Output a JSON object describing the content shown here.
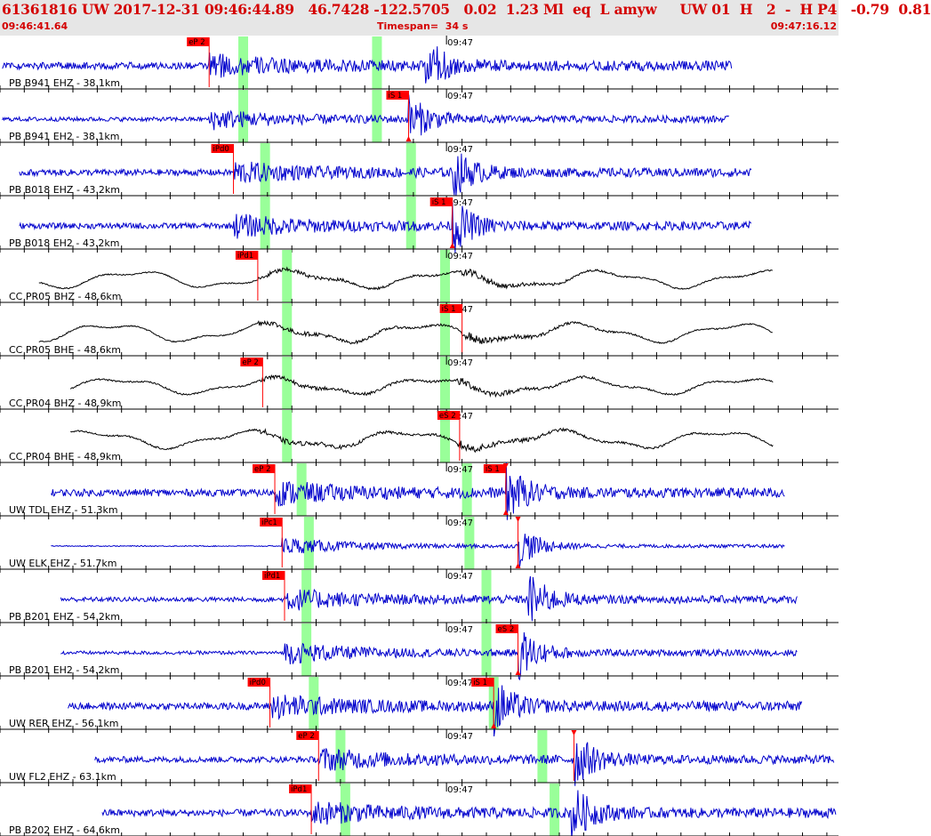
{
  "header": {
    "title": "61361816 UW 2017-12-31 09:46:44.89   46.7428 -122.5705   0.02  1.23 Ml  eq  L amyw     UW 01  H   2  -  H P4   -0.79  0.81",
    "start_time": "09:46:41.64",
    "timespan": "Timespan=  34 s",
    "end_time": "09:47:16.12"
  },
  "chart_data": {
    "type": "line",
    "time_range_s": [
      0,
      34.48
    ],
    "minute_mark_label": "09:47",
    "minute_mark_s": 18.36,
    "colors": {
      "trace_short_period": "#0000cc",
      "trace_broadband": "#000000",
      "pick_flag": "#ff0000",
      "window": "#99ff99",
      "grid": "#000000"
    },
    "traces": [
      {
        "label": "PB B941 EHZ - 38.1km",
        "color": "#0000cc",
        "style": "sp",
        "trace_start_s": 0.1,
        "trace_end_s": 30.1,
        "noise": 0.12,
        "p_s": 8.6,
        "s_s": 17.5,
        "p_pick": {
          "label": "eP 2",
          "t": 8.6,
          "side": "left",
          "marker": ""
        },
        "s_pick": null,
        "windows_s": [
          9.8,
          15.3
        ],
        "amp": 0.55
      },
      {
        "label": "PB B941 EH2 - 38.1km",
        "color": "#0000cc",
        "style": "sp",
        "trace_start_s": 0.1,
        "trace_end_s": 30.0,
        "noise": 0.08,
        "p_s": 8.6,
        "s_s": 16.8,
        "p_pick": null,
        "s_pick": {
          "label": "iS 1",
          "t": 16.8,
          "side": "left",
          "marker": "up"
        },
        "windows_s": [
          9.8,
          15.3
        ],
        "amp": 0.5
      },
      {
        "label": "PB B018 EHZ - 43.2km",
        "color": "#0000cc",
        "style": "sp",
        "trace_start_s": 0.8,
        "trace_end_s": 30.9,
        "noise": 0.12,
        "p_s": 9.6,
        "s_s": 18.6,
        "p_pick": {
          "label": "iPd0",
          "t": 9.6,
          "side": "left",
          "marker": ""
        },
        "s_pick": null,
        "windows_s": [
          10.7,
          16.7
        ],
        "amp": 0.5
      },
      {
        "label": "PB B018 EH2 - 43.2km",
        "color": "#0000cc",
        "style": "sp",
        "trace_start_s": 0.8,
        "trace_end_s": 30.9,
        "noise": 0.1,
        "p_s": 9.6,
        "s_s": 18.6,
        "p_pick": null,
        "s_pick": {
          "label": "iS 1",
          "t": 18.6,
          "side": "left",
          "marker": "up"
        },
        "windows_s": [
          10.7,
          16.7
        ],
        "amp": 0.55
      },
      {
        "label": "CC PR05 BHZ - 48.6km",
        "color": "#000000",
        "style": "bb",
        "trace_start_s": 1.6,
        "trace_end_s": 31.8,
        "noise": 0.03,
        "p_s": 10.6,
        "s_s": 19.0,
        "p_pick": {
          "label": "iPd1",
          "t": 10.6,
          "side": "left",
          "marker": ""
        },
        "s_pick": null,
        "windows_s": [
          11.6,
          18.1
        ],
        "amp": 0.7
      },
      {
        "label": "CC PR05 BHE - 48.6km",
        "color": "#000000",
        "style": "bb",
        "trace_start_s": 1.6,
        "trace_end_s": 31.8,
        "noise": 0.03,
        "p_s": 10.6,
        "s_s": 19.0,
        "p_pick": null,
        "s_pick": {
          "label": "iS 1",
          "t": 19.0,
          "side": "left",
          "marker": ""
        },
        "windows_s": [
          11.6,
          18.1
        ],
        "amp": 0.75
      },
      {
        "label": "CC PR04 BHZ - 48.9km",
        "color": "#000000",
        "style": "bb",
        "trace_start_s": 2.9,
        "trace_end_s": 31.8,
        "noise": 0.04,
        "p_s": 10.7,
        "s_s": 18.8,
        "p_pick": {
          "label": "eP 2",
          "t": 10.8,
          "side": "left",
          "marker": ""
        },
        "s_pick": null,
        "windows_s": [
          11.6,
          18.1
        ],
        "amp": 0.65
      },
      {
        "label": "CC PR04 BHE - 48.9km",
        "color": "#000000",
        "style": "bb",
        "trace_start_s": 2.9,
        "trace_end_s": 31.8,
        "noise": 0.04,
        "p_s": 10.7,
        "s_s": 18.8,
        "p_pick": null,
        "s_pick": {
          "label": "eS 2",
          "t": 18.9,
          "side": "left",
          "marker": ""
        },
        "windows_s": [
          11.6,
          18.1
        ],
        "amp": 0.7
      },
      {
        "label": "UW TDL EHZ - 51.3km",
        "color": "#0000cc",
        "style": "sp",
        "trace_start_s": 2.1,
        "trace_end_s": 32.3,
        "noise": 0.12,
        "p_s": 11.3,
        "s_s": 20.8,
        "p_pick": {
          "label": "eP 2",
          "t": 11.3,
          "side": "left",
          "marker": ""
        },
        "s_pick": {
          "label": "iS 1",
          "t": 20.8,
          "side": "left",
          "marker": "both"
        },
        "windows_s": [
          12.2,
          19.0
        ],
        "amp": 0.55
      },
      {
        "label": "UW ELK EHZ - 51.7km",
        "color": "#0000cc",
        "style": "sp",
        "trace_start_s": 2.1,
        "trace_end_s": 32.3,
        "noise": 0.02,
        "p_s": 11.6,
        "s_s": 21.3,
        "p_pick": {
          "label": "iPc1",
          "t": 11.6,
          "side": "left",
          "marker": ""
        },
        "s_pick": {
          "label": "",
          "t": 21.3,
          "side": "left",
          "marker": "both"
        },
        "windows_s": [
          12.5,
          19.1
        ],
        "amp": 0.45
      },
      {
        "label": "PB B201 EHZ - 54.2km",
        "color": "#0000cc",
        "style": "sp",
        "trace_start_s": 2.5,
        "trace_end_s": 32.8,
        "noise": 0.08,
        "p_s": 11.7,
        "s_s": 21.7,
        "p_pick": {
          "label": "iPd1",
          "t": 11.7,
          "side": "left",
          "marker": ""
        },
        "s_pick": null,
        "windows_s": [
          12.4,
          19.8
        ],
        "amp": 0.55
      },
      {
        "label": "PB B201 EH2 - 54.2km",
        "color": "#0000cc",
        "style": "sp",
        "trace_start_s": 2.5,
        "trace_end_s": 32.8,
        "noise": 0.06,
        "p_s": 11.7,
        "s_s": 21.3,
        "p_pick": null,
        "s_pick": {
          "label": "eS 2",
          "t": 21.3,
          "side": "left",
          "marker": "up"
        },
        "windows_s": [
          12.4,
          19.8
        ],
        "amp": 0.55
      },
      {
        "label": "UW RER EHZ - 56.1km",
        "color": "#0000cc",
        "style": "sp",
        "trace_start_s": 2.8,
        "trace_end_s": 33.0,
        "noise": 0.12,
        "p_s": 11.2,
        "s_s": 20.3,
        "p_pick": {
          "label": "iPd0",
          "t": 11.1,
          "side": "left",
          "marker": ""
        },
        "s_pick": {
          "label": "iS 1",
          "t": 20.3,
          "side": "left",
          "marker": "up"
        },
        "windows_s": [
          12.7,
          20.1
        ],
        "amp": 0.55
      },
      {
        "label": "UW FL2 EHZ - 63.1km",
        "color": "#0000cc",
        "style": "sp",
        "trace_start_s": 3.9,
        "trace_end_s": 34.3,
        "noise": 0.1,
        "p_s": 13.1,
        "s_s": 23.6,
        "p_pick": {
          "label": "eP 2",
          "t": 13.1,
          "side": "left",
          "marker": ""
        },
        "s_pick": {
          "label": "",
          "t": 23.6,
          "side": "left",
          "marker": "down"
        },
        "windows_s": [
          13.8,
          22.1
        ],
        "amp": 0.55
      },
      {
        "label": "PB B202 EHZ - 64.6km",
        "color": "#0000cc",
        "style": "sp",
        "trace_start_s": 4.2,
        "trace_end_s": 34.4,
        "noise": 0.12,
        "p_s": 12.8,
        "s_s": 23.5,
        "p_pick": {
          "label": "iPd1",
          "t": 12.8,
          "side": "left",
          "marker": ""
        },
        "s_pick": null,
        "windows_s": [
          14.0,
          22.6
        ],
        "amp": 0.55
      }
    ]
  }
}
